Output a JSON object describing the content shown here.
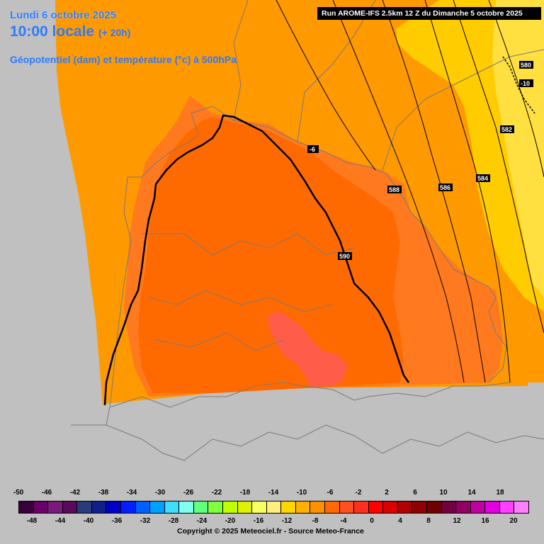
{
  "header": {
    "date": "Lundi 6 octobre 2025",
    "time_local": "10:00 locale",
    "time_offset": "(+ 20h)",
    "parameter": "Géopotentiel (dam) et température (°c) à 500hPa",
    "run_info": "Run AROME-IFS 2.5km 12 Z du Dimanche 5 octobre 2025"
  },
  "map": {
    "geopotential_contours_dam": [
      "590",
      "588",
      "586",
      "584",
      "582",
      "580"
    ],
    "isotherm_labels": [
      "-6",
      "-10"
    ],
    "colors": {
      "outside_domain": "#c0c0c0",
      "temp_minus_8": "#ff9900",
      "temp_minus_6": "#ff7a1e",
      "temp_minus_4": "#ff6a00",
      "temp_minus_2": "#ff5c4a",
      "temp_minus_10": "#ffcc00",
      "temp_minus_12": "#ffe040"
    }
  },
  "legend": {
    "top_labels": [
      "-50",
      "-46",
      "-42",
      "-38",
      "-34",
      "-30",
      "-26",
      "-22",
      "-18",
      "-14",
      "-10",
      "-6",
      "-2",
      "2",
      "6",
      "10",
      "14",
      "18"
    ],
    "bottom_labels": [
      "-48",
      "-44",
      "-40",
      "-36",
      "-32",
      "-28",
      "-24",
      "-20",
      "-16",
      "-12",
      "-8",
      "-4",
      "0",
      "4",
      "8",
      "12",
      "16",
      "20"
    ],
    "colors": [
      "#3a003a",
      "#6a006a",
      "#7a1a7a",
      "#5a0a5a",
      "#2a3a7a",
      "#10208a",
      "#0000c8",
      "#0020ff",
      "#0060ff",
      "#00a0ff",
      "#40ddff",
      "#80ffee",
      "#60ff80",
      "#80ff40",
      "#c0ff00",
      "#e0f000",
      "#f8ff60",
      "#ffef80",
      "#ffd700",
      "#ffb000",
      "#ff9000",
      "#ff6a00",
      "#ff5020",
      "#ff3020",
      "#ff0000",
      "#d80000",
      "#b00000",
      "#900000",
      "#700000",
      "#700040",
      "#900060",
      "#c000a0",
      "#e000e0",
      "#ff40ff",
      "#ff80ff"
    ]
  },
  "copyright": "Copyright © 2025 Meteociel.fr - Source Meteo-France"
}
